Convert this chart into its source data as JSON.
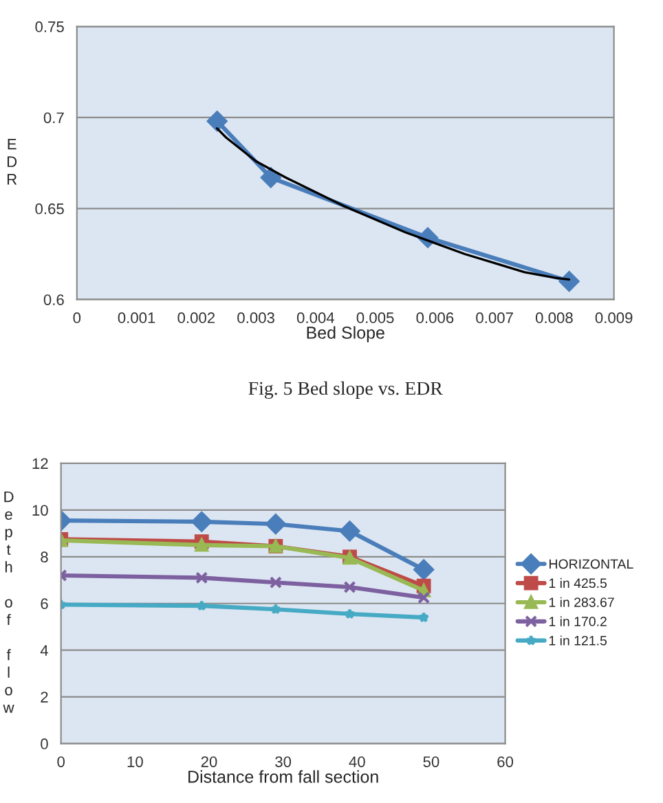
{
  "chart_data": [
    {
      "type": "line",
      "xlabel": "Bed Slope",
      "ylabel": "EDR",
      "xlim": [
        0,
        0.009
      ],
      "xticks": [
        0,
        0.001,
        0.002,
        0.003,
        0.004,
        0.005,
        0.006,
        0.007,
        0.008,
        0.009
      ],
      "ylim": [
        0.6,
        0.75
      ],
      "yticks": [
        0.6,
        0.65,
        0.7,
        0.75
      ],
      "grid": "y",
      "marker": "diamond",
      "annotations": [
        "Fig. 5 Bed slope vs. EDR"
      ],
      "series": [
        {
          "color": "#4a7ebb",
          "x": [
            0.00235,
            0.00325,
            0.00588,
            0.00825
          ],
          "values": [
            0.698,
            0.667,
            0.634,
            0.61
          ]
        },
        {
          "type": "line",
          "marker": "none",
          "color": "#000000",
          "x": [
            0.00235,
            0.0025,
            0.003,
            0.0035,
            0.004,
            0.0045,
            0.005,
            0.0055,
            0.006,
            0.0065,
            0.007,
            0.0075,
            0.008,
            0.00825
          ],
          "values": [
            0.694,
            0.689,
            0.676,
            0.667,
            0.659,
            0.651,
            0.644,
            0.637,
            0.631,
            0.625,
            0.62,
            0.615,
            0.612,
            0.611
          ]
        }
      ]
    },
    {
      "type": "line",
      "xlabel": "Distance from fall section",
      "ylabel": "Depth of flow",
      "xlim": [
        0,
        60
      ],
      "xticks": [
        0,
        10,
        20,
        30,
        40,
        50,
        60
      ],
      "ylim": [
        0,
        12
      ],
      "yticks": [
        0,
        2,
        4,
        6,
        8,
        10,
        12
      ],
      "grid": "y",
      "legend": "right",
      "x": [
        0,
        19,
        29,
        39,
        49
      ],
      "series": [
        {
          "name": "HORIZONTAL",
          "color": "#4a7ebb",
          "marker": "diamond",
          "values": [
            9.55,
            9.5,
            9.4,
            9.1,
            7.45
          ]
        },
        {
          "name": "1 in 425.5",
          "color": "#be4b48",
          "marker": "square",
          "values": [
            8.75,
            8.65,
            8.45,
            8.0,
            6.75
          ]
        },
        {
          "name": "1 in 283.67",
          "color": "#98b954",
          "marker": "triangle",
          "values": [
            8.7,
            8.5,
            8.45,
            7.95,
            6.55
          ]
        },
        {
          "name": "1 in 170.2",
          "color": "#7d60a0",
          "marker": "cross",
          "values": [
            7.2,
            7.1,
            6.9,
            6.7,
            6.25
          ]
        },
        {
          "name": "1 in 121.5",
          "color": "#46aac5",
          "marker": "star",
          "values": [
            5.95,
            5.9,
            5.75,
            5.55,
            5.4
          ]
        }
      ]
    }
  ]
}
